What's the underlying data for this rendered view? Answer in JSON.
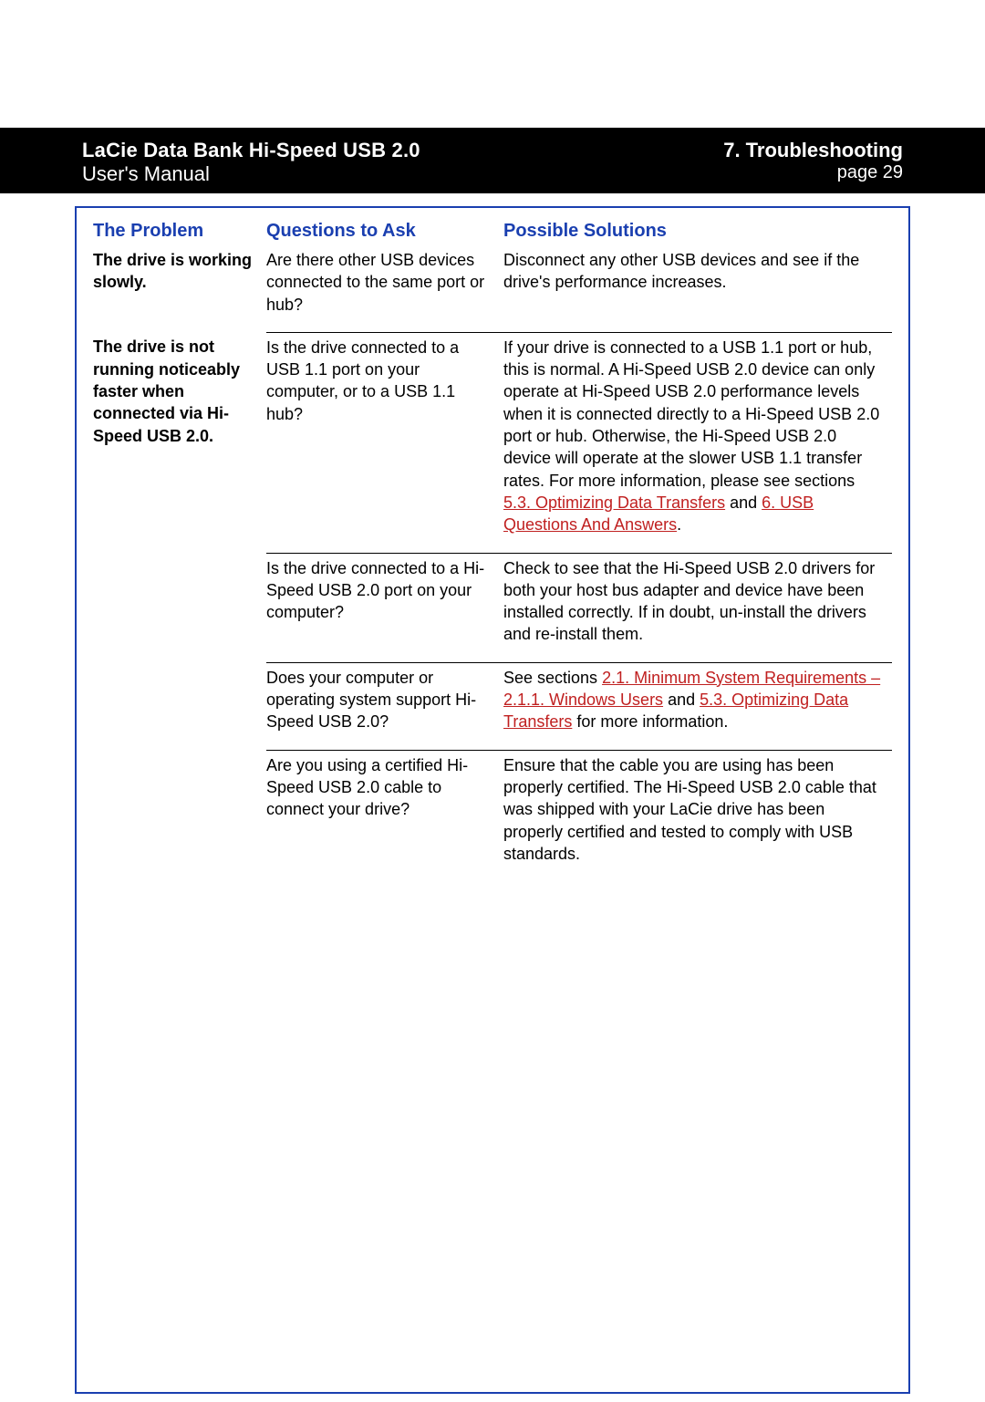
{
  "header": {
    "title_line1": "LaCie Data Bank Hi-Speed USB 2.0",
    "title_line2": "User's Manual",
    "section": "7. Troubleshooting",
    "page_label": "page 29"
  },
  "columns": {
    "problem": "The Problem",
    "questions": "Questions to Ask",
    "solutions": "Possible Solutions"
  },
  "rows": [
    {
      "problem": "The drive is working slowly.",
      "question": "Are there other USB devices connected to the same port or hub?",
      "solution_pre": "Disconnect any other USB devices and see if the drive's performance increases."
    },
    {
      "problem": "The drive is not running noticeably faster when connected via Hi-Speed USB 2.0.",
      "question": "Is the drive connected to a USB 1.1 port on your computer, or to a USB 1.1 hub?",
      "solution_pre": "If your drive is connected to a USB 1.1 port or hub, this is normal. A Hi-Speed USB 2.0 device can only operate at Hi-Speed USB 2.0 performance levels when it is connected directly to a Hi-Speed USB 2.0 port or hub. Otherwise, the Hi-Speed USB 2.0 device will operate at the slower USB 1.1 transfer rates. For more information, please see sections ",
      "link1": "5.3. Optimizing Data Transfers",
      "mid1": " and  ",
      "link2": "6. USB Questions And Answers",
      "post": "."
    },
    {
      "problem": "",
      "question": "Is the drive connected to a Hi-Speed USB 2.0 port on your computer?",
      "solution_pre": "Check to see that the Hi-Speed USB 2.0 drivers for both your host bus adapter and device have been installed correctly. If in doubt, un-install the drivers and re-install them."
    },
    {
      "problem": "",
      "question": "Does your computer or operating system support Hi-Speed USB 2.0?",
      "solution_pre": "See sections ",
      "link1": "2.1. Minimum System Requirements – 2.1.1. Windows Users",
      "mid1": " and ",
      "link2": "5.3. Optimizing Data Transfers",
      "post": " for more information."
    },
    {
      "problem": "",
      "question": "Are you using a certified Hi-Speed USB 2.0 cable to connect your drive?",
      "solution_pre": "Ensure that the cable you are using has been properly certified. The Hi-Speed USB 2.0 cable that was shipped with your LaCie drive has been properly certified and tested to comply with USB standards."
    }
  ],
  "colors": {
    "header_bg": "#000000",
    "header_text": "#ffffff",
    "accent": "#1a3fb0",
    "link": "#c02020",
    "text": "#000000",
    "border": "#000000"
  }
}
